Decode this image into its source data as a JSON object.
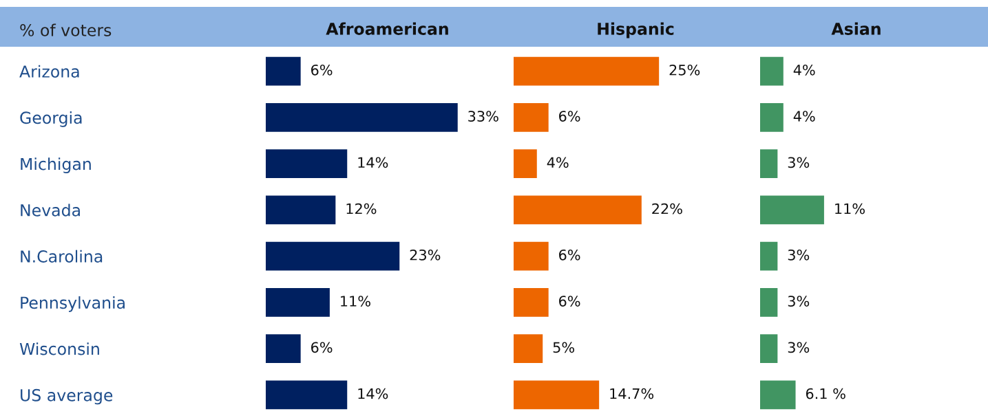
{
  "chart_data": [
    {
      "type": "bar",
      "orientation": "horizontal",
      "title": "Afroamerican",
      "annotations": [
        "% of voters"
      ],
      "categories": [
        "Arizona",
        "Georgia",
        "Michigan",
        "Nevada",
        "N.Carolina",
        "Pennsylvania",
        "Wisconsin",
        "US average"
      ],
      "tick_labels": "y",
      "color": "#002060",
      "values": [
        6,
        33,
        14,
        12,
        23,
        11,
        6,
        14
      ],
      "value_labels": [
        "6%",
        "33%",
        "14%",
        "12%",
        "23%",
        "11%",
        "6%",
        "14%"
      ]
    },
    {
      "type": "bar",
      "orientation": "horizontal",
      "title": "Hispanic",
      "categories": [
        null,
        null,
        null,
        null,
        null,
        null,
        null,
        null
      ],
      "tick_labels": false,
      "color": "#ed6600",
      "values": [
        25,
        6,
        4,
        22,
        6,
        6,
        5,
        14.7
      ],
      "value_labels": [
        "25%",
        "6%",
        "4%",
        "22%",
        "6%",
        "6%",
        "5%",
        "14.7%"
      ]
    },
    {
      "type": "bar",
      "orientation": "horizontal",
      "title": "Asian",
      "categories": [
        null,
        null,
        null,
        null,
        null,
        null,
        null,
        null
      ],
      "tick_labels": false,
      "color": "#419562",
      "values": [
        4,
        4,
        3,
        11,
        3,
        3,
        3,
        6.1
      ],
      "value_labels": [
        "4%",
        "4%",
        "3%",
        "11%",
        "3%",
        "3%",
        "3%",
        "6.1 %"
      ]
    }
  ]
}
